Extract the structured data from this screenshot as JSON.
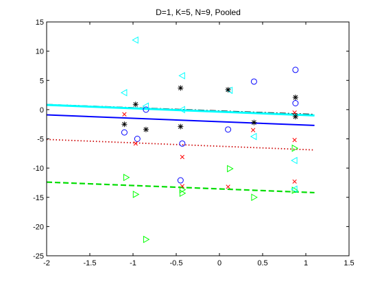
{
  "chart_data": {
    "type": "scatter",
    "title": "D=1, K=5, N=9, Pooled",
    "xlabel": "",
    "ylabel": "",
    "xlim": [
      -2,
      1.5
    ],
    "ylim": [
      -25,
      15
    ],
    "xticks": [
      -2,
      -1.5,
      -1,
      -0.5,
      0,
      0.5,
      1,
      1.5
    ],
    "yticks": [
      -25,
      -20,
      -15,
      -10,
      -5,
      0,
      5,
      10,
      15
    ],
    "grid": false,
    "axis_color": "#000000",
    "series": [
      {
        "marker": "circle-icon",
        "color": "#0000ff",
        "points": [
          {
            "x": -1.1,
            "y": -3.9
          },
          {
            "x": -0.95,
            "y": -5.0
          },
          {
            "x": -0.85,
            "y": 0.0
          },
          {
            "x": -0.45,
            "y": -12.1
          },
          {
            "x": -0.43,
            "y": -5.8
          },
          {
            "x": 0.1,
            "y": -3.4
          },
          {
            "x": 0.4,
            "y": 4.8
          },
          {
            "x": 0.88,
            "y": 6.8
          },
          {
            "x": 0.88,
            "y": 1.1
          }
        ]
      },
      {
        "marker": "x-icon",
        "color": "#ff0000",
        "points": [
          {
            "x": -1.1,
            "y": -0.8
          },
          {
            "x": -0.97,
            "y": -5.8
          },
          {
            "x": -0.43,
            "y": -8.1
          },
          {
            "x": -0.43,
            "y": -13.1
          },
          {
            "x": 0.1,
            "y": -13.2
          },
          {
            "x": 0.39,
            "y": -3.5
          },
          {
            "x": 0.87,
            "y": -5.2
          },
          {
            "x": 0.87,
            "y": -12.3
          },
          {
            "x": 0.87,
            "y": -0.5
          }
        ]
      },
      {
        "marker": "triangle-right-icon",
        "color": "#00ff00",
        "points": [
          {
            "x": -1.08,
            "y": -11.6
          },
          {
            "x": -0.97,
            "y": -14.5
          },
          {
            "x": -0.85,
            "y": -22.2
          },
          {
            "x": -0.43,
            "y": -13.7
          },
          {
            "x": -0.43,
            "y": -14.3
          },
          {
            "x": 0.12,
            "y": -10.1
          },
          {
            "x": 0.4,
            "y": -15.0
          },
          {
            "x": 0.87,
            "y": -6.6
          },
          {
            "x": 0.87,
            "y": -13.8
          }
        ]
      },
      {
        "marker": "triangle-left-icon",
        "color": "#00ffff",
        "points": [
          {
            "x": -1.1,
            "y": 2.9
          },
          {
            "x": -0.97,
            "y": 11.9
          },
          {
            "x": -0.85,
            "y": 0.6
          },
          {
            "x": -0.43,
            "y": 5.8
          },
          {
            "x": -0.43,
            "y": 0.0
          },
          {
            "x": 0.12,
            "y": 3.3
          },
          {
            "x": 0.4,
            "y": -4.6
          },
          {
            "x": 0.87,
            "y": -8.7
          },
          {
            "x": 0.87,
            "y": -13.6
          }
        ]
      },
      {
        "marker": "asterisk-icon",
        "color": "#000000",
        "points": [
          {
            "x": -1.1,
            "y": -2.5
          },
          {
            "x": -0.97,
            "y": 0.9
          },
          {
            "x": -0.85,
            "y": -3.4
          },
          {
            "x": -0.45,
            "y": 3.7
          },
          {
            "x": -0.45,
            "y": -2.9
          },
          {
            "x": 0.1,
            "y": 3.4
          },
          {
            "x": 0.4,
            "y": -2.2
          },
          {
            "x": 0.88,
            "y": 2.1
          },
          {
            "x": 0.88,
            "y": -1.2
          }
        ]
      }
    ],
    "fit_lines": [
      {
        "color": "#000000",
        "style": "dashdot",
        "x": [
          -2,
          1.1
        ],
        "y": [
          0.9,
          -0.8
        ],
        "width": 1.2
      },
      {
        "color": "#00ffff",
        "style": "solid",
        "x": [
          -2,
          1.1
        ],
        "y": [
          0.8,
          -1.0
        ],
        "width": 3
      },
      {
        "color": "#0000ff",
        "style": "solid",
        "x": [
          -2,
          1.1
        ],
        "y": [
          -0.9,
          -2.7
        ],
        "width": 2
      },
      {
        "color": "#cc0000",
        "style": "dotted",
        "x": [
          -2,
          1.1
        ],
        "y": [
          -5.1,
          -6.9
        ],
        "width": 1.8
      },
      {
        "color": "#00dd00",
        "style": "dashed",
        "x": [
          -2,
          1.1
        ],
        "y": [
          -12.4,
          -14.2
        ],
        "width": 2.2
      }
    ]
  }
}
